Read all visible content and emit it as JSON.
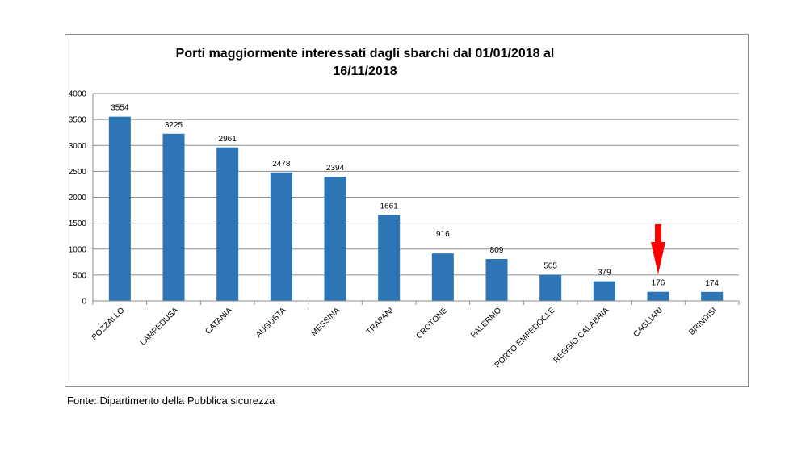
{
  "chart_data": {
    "type": "bar",
    "title": [
      "Porti maggiormente interessati dagli sbarchi dal 01/01/2018 al",
      "16/11/2018"
    ],
    "categories": [
      "POZZALLO",
      "LAMPEDUSA",
      "CATANIA",
      "AUGUSTA",
      "MESSINA",
      "TRAPANI",
      "CROTONE",
      "PALERMO",
      "PORTO EMPEDOCLE",
      "REGGIO CALABRIA",
      "CAGLIARI",
      "BRINDISI"
    ],
    "values": [
      3554,
      3225,
      2961,
      2478,
      2394,
      1661,
      916,
      809,
      505,
      379,
      176,
      174
    ],
    "ylim": [
      0,
      4000
    ],
    "yticks": [
      0,
      500,
      1000,
      1500,
      2000,
      2500,
      3000,
      3500,
      4000
    ],
    "grid": true,
    "bar_color": "#2e75b6",
    "highlight": {
      "category": "CAGLIARI",
      "marker": "down-arrow",
      "color": "#ff0000"
    }
  },
  "source_note": "Fonte: Dipartimento della Pubblica sicurezza"
}
